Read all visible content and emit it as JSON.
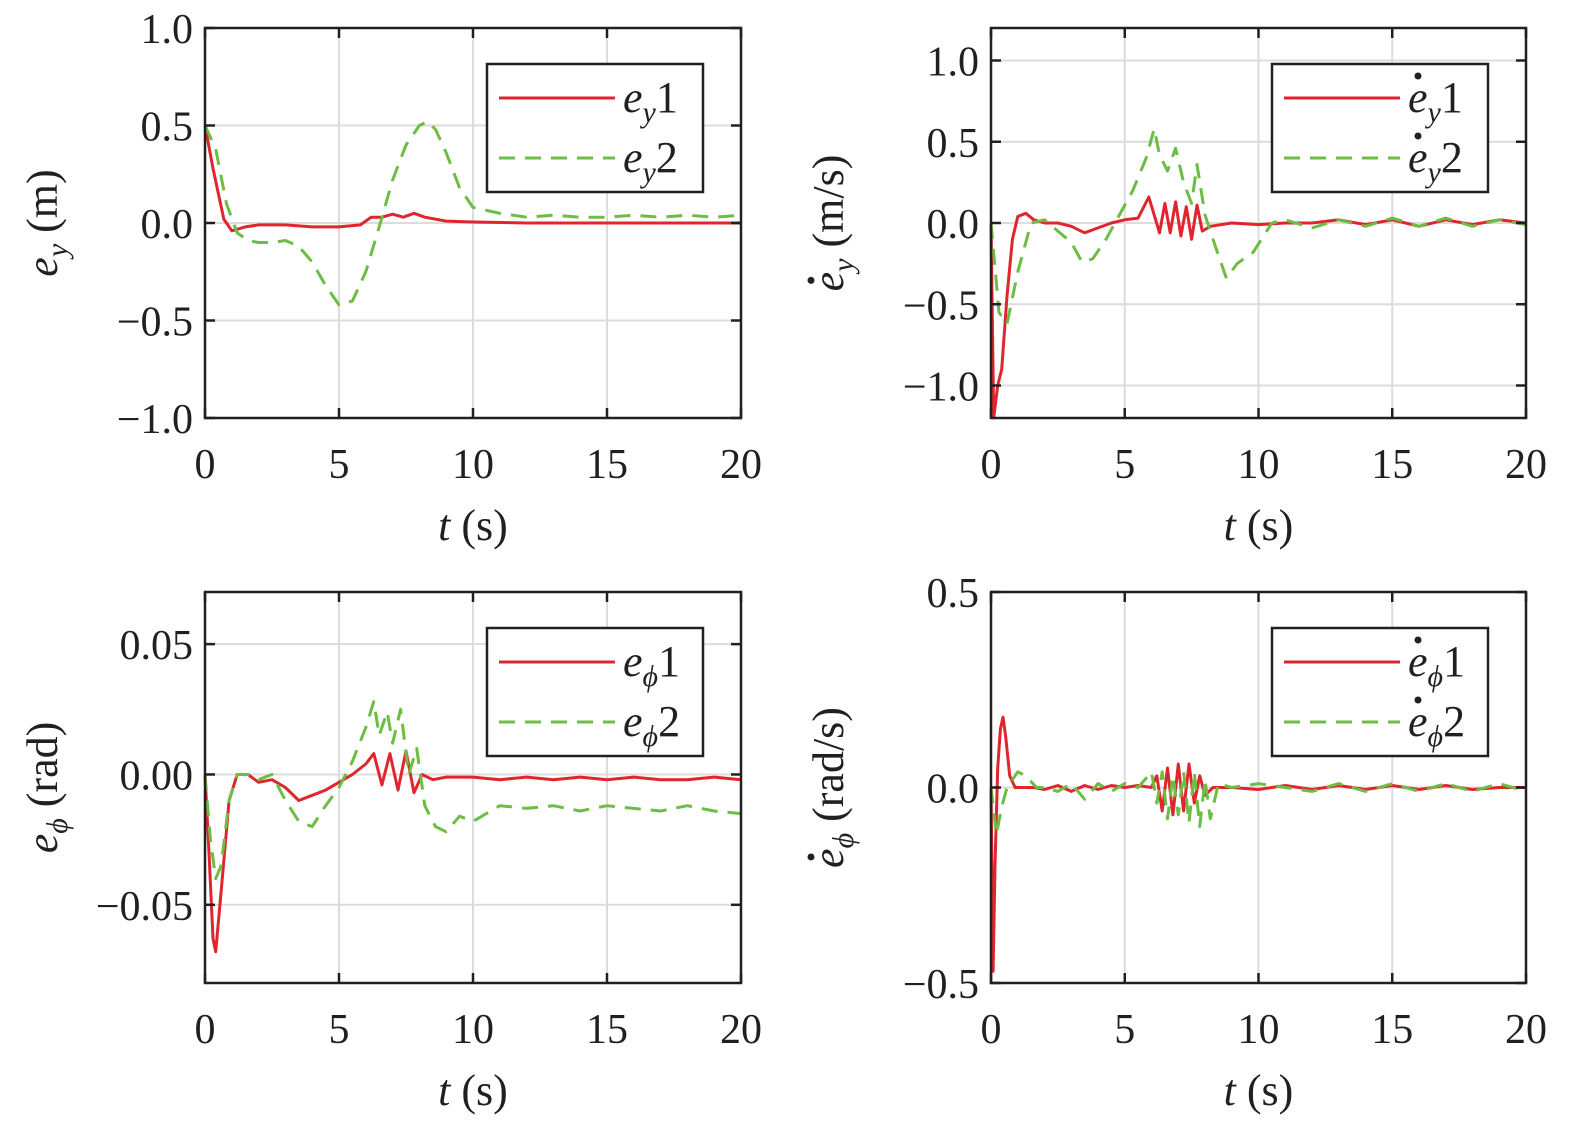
{
  "colors": {
    "series1": "#e0252f",
    "series2": "#6dbd45",
    "grid": "#dcdcdc",
    "axis": "#231f20"
  },
  "chart_data": [
    {
      "type": "line",
      "x_label": {
        "italic": "t",
        "rest": " (s)"
      },
      "y_label": {
        "base": "e",
        "sub": "y",
        "dot": false,
        "unit": " (m)"
      },
      "xlim": [
        0,
        20
      ],
      "ylim": [
        -1.0,
        1.0
      ],
      "x_ticks": [
        "0",
        "5",
        "10",
        "15",
        "20"
      ],
      "y_ticks": [
        "−1.0",
        "−0.5",
        "0.0",
        "0.5",
        "1.0"
      ],
      "y_tick_values": [
        -1.0,
        -0.5,
        0.0,
        0.5,
        1.0
      ],
      "grid": true,
      "legend_position": "top-right",
      "series": [
        {
          "name": "e_y1",
          "legend": {
            "base": "e",
            "sub": "y",
            "idx": "1",
            "dot": false
          },
          "style": "solid",
          "x": [
            0,
            0.3,
            0.7,
            1.0,
            1.5,
            2,
            3,
            4,
            5,
            5.8,
            6.2,
            6.6,
            7.0,
            7.4,
            7.8,
            8.2,
            9,
            10,
            12,
            14,
            16,
            18,
            20
          ],
          "y": [
            0.5,
            0.28,
            0.02,
            -0.04,
            -0.02,
            -0.01,
            -0.01,
            -0.02,
            -0.02,
            -0.01,
            0.03,
            0.03,
            0.045,
            0.03,
            0.05,
            0.03,
            0.01,
            0.005,
            0.0,
            0.0,
            0.0,
            0.0,
            0.0
          ]
        },
        {
          "name": "e_y2",
          "legend": {
            "base": "e",
            "sub": "y",
            "idx": "2",
            "dot": false
          },
          "style": "dashed",
          "x": [
            0,
            0.4,
            0.8,
            1.2,
            1.6,
            2,
            2.5,
            3,
            3.5,
            4,
            4.5,
            5,
            5.5,
            6,
            6.5,
            7,
            7.5,
            8,
            8.3,
            8.6,
            9,
            9.5,
            10,
            11,
            12,
            13,
            14,
            15,
            16,
            17,
            18,
            19,
            20
          ],
          "y": [
            0.5,
            0.38,
            0.1,
            -0.05,
            -0.09,
            -0.1,
            -0.1,
            -0.09,
            -0.12,
            -0.2,
            -0.32,
            -0.42,
            -0.4,
            -0.25,
            -0.02,
            0.22,
            0.4,
            0.5,
            0.52,
            0.48,
            0.36,
            0.18,
            0.08,
            0.05,
            0.03,
            0.04,
            0.03,
            0.03,
            0.04,
            0.03,
            0.04,
            0.03,
            0.04
          ]
        }
      ]
    },
    {
      "type": "line",
      "x_label": {
        "italic": "t",
        "rest": " (s)"
      },
      "y_label": {
        "base": "e",
        "sub": "y",
        "dot": true,
        "unit": " (m/s)"
      },
      "xlim": [
        0,
        20
      ],
      "ylim": [
        -1.2,
        1.2
      ],
      "x_ticks": [
        "0",
        "5",
        "10",
        "15",
        "20"
      ],
      "y_ticks": [
        "−1.0",
        "−0.5",
        "0.0",
        "0.5",
        "1.0"
      ],
      "y_tick_values": [
        -1.0,
        -0.5,
        0.0,
        0.5,
        1.0
      ],
      "grid": true,
      "legend_position": "top-right",
      "series": [
        {
          "name": "ė_y1",
          "legend": {
            "base": "e",
            "sub": "y",
            "idx": "1",
            "dot": true
          },
          "style": "solid",
          "x": [
            0,
            0.1,
            0.25,
            0.4,
            0.6,
            0.8,
            1.0,
            1.3,
            1.6,
            2,
            2.5,
            3,
            3.5,
            4,
            4.5,
            5,
            5.5,
            5.9,
            6.1,
            6.3,
            6.5,
            6.7,
            6.9,
            7.1,
            7.3,
            7.5,
            7.7,
            7.9,
            8.2,
            9,
            10,
            11,
            12,
            13,
            14,
            15,
            16,
            17,
            18,
            19,
            20
          ],
          "y": [
            0,
            -1.2,
            -1.0,
            -0.9,
            -0.45,
            -0.1,
            0.04,
            0.06,
            0.02,
            0.0,
            0.0,
            -0.02,
            -0.06,
            -0.03,
            0.0,
            0.02,
            0.03,
            0.16,
            0.05,
            -0.06,
            0.12,
            -0.06,
            0.13,
            -0.08,
            0.1,
            -0.1,
            0.11,
            -0.05,
            -0.02,
            0.0,
            -0.01,
            0.0,
            0.0,
            0.02,
            -0.01,
            0.02,
            -0.02,
            0.02,
            -0.01,
            0.02,
            0.0
          ]
        },
        {
          "name": "ė_y2",
          "legend": {
            "base": "e",
            "sub": "y",
            "idx": "2",
            "dot": true
          },
          "style": "dashed",
          "x": [
            0,
            0.3,
            0.6,
            1.0,
            1.5,
            2,
            2.5,
            3,
            3.4,
            3.8,
            4.3,
            4.8,
            5.3,
            5.8,
            6.1,
            6.3,
            6.6,
            6.9,
            7.2,
            7.5,
            7.7,
            8.0,
            8.4,
            8.8,
            9.2,
            9.8,
            10.5,
            11,
            12,
            13,
            14,
            15,
            16,
            17,
            18,
            19,
            20
          ],
          "y": [
            0,
            -0.55,
            -0.62,
            -0.3,
            0.0,
            0.02,
            -0.05,
            -0.12,
            -0.24,
            -0.22,
            -0.1,
            0.05,
            0.2,
            0.4,
            0.58,
            0.42,
            0.32,
            0.46,
            0.25,
            0.12,
            0.36,
            0.05,
            -0.15,
            -0.34,
            -0.25,
            -0.18,
            0.0,
            0.02,
            -0.03,
            0.02,
            -0.02,
            0.03,
            -0.02,
            0.03,
            -0.02,
            0.02,
            -0.01
          ]
        }
      ]
    },
    {
      "type": "line",
      "x_label": {
        "italic": "t",
        "rest": " (s)"
      },
      "y_label": {
        "base": "e",
        "sub": "ϕ",
        "dot": false,
        "unit": " (rad)"
      },
      "xlim": [
        0,
        20
      ],
      "ylim": [
        -0.08,
        0.07
      ],
      "x_ticks": [
        "0",
        "5",
        "10",
        "15",
        "20"
      ],
      "y_ticks": [
        "−0.05",
        "0.00",
        "0.05"
      ],
      "y_tick_values": [
        -0.05,
        0.0,
        0.05
      ],
      "grid": true,
      "legend_position": "top-right",
      "series": [
        {
          "name": "e_ϕ1",
          "legend": {
            "base": "e",
            "sub": "ϕ",
            "idx": "1",
            "dot": false
          },
          "style": "solid",
          "x": [
            0,
            0.15,
            0.3,
            0.4,
            0.6,
            0.9,
            1.2,
            1.6,
            2,
            2.5,
            3,
            3.5,
            4,
            4.5,
            5,
            5.5,
            6.0,
            6.3,
            6.6,
            6.9,
            7.2,
            7.5,
            7.8,
            8.1,
            8.5,
            9,
            10,
            11,
            12,
            13,
            14,
            15,
            16,
            17,
            18,
            19,
            20
          ],
          "y": [
            0,
            -0.03,
            -0.063,
            -0.068,
            -0.045,
            -0.01,
            0.0,
            0.0,
            -0.003,
            -0.002,
            -0.005,
            -0.01,
            -0.008,
            -0.006,
            -0.003,
            0.0,
            0.004,
            0.008,
            -0.004,
            0.008,
            -0.006,
            0.009,
            -0.007,
            0.0,
            -0.002,
            -0.001,
            -0.001,
            -0.002,
            -0.001,
            -0.002,
            -0.001,
            -0.002,
            -0.001,
            -0.002,
            -0.002,
            -0.001,
            -0.002
          ]
        },
        {
          "name": "e_ϕ2",
          "legend": {
            "base": "e",
            "sub": "ϕ",
            "idx": "2",
            "dot": false
          },
          "style": "dashed",
          "x": [
            0,
            0.2,
            0.4,
            0.6,
            0.9,
            1.2,
            1.6,
            2,
            2.5,
            3,
            3.5,
            4,
            4.5,
            5,
            5.5,
            6.0,
            6.3,
            6.5,
            6.8,
            7.0,
            7.3,
            7.6,
            7.9,
            8.2,
            8.6,
            9.0,
            9.5,
            10,
            11,
            12,
            13,
            14,
            15,
            16,
            17,
            18,
            19,
            20
          ],
          "y": [
            0,
            -0.025,
            -0.04,
            -0.035,
            -0.01,
            0.0,
            0.0,
            -0.002,
            0.0,
            -0.01,
            -0.018,
            -0.02,
            -0.012,
            -0.005,
            0.005,
            0.018,
            0.028,
            0.015,
            0.024,
            0.012,
            0.025,
            0.0,
            0.01,
            -0.012,
            -0.02,
            -0.022,
            -0.016,
            -0.018,
            -0.012,
            -0.013,
            -0.012,
            -0.014,
            -0.012,
            -0.013,
            -0.014,
            -0.012,
            -0.014,
            -0.015
          ]
        }
      ]
    },
    {
      "type": "line",
      "x_label": {
        "italic": "t",
        "rest": " (s)"
      },
      "y_label": {
        "base": "e",
        "sub": "ϕ",
        "dot": true,
        "unit": " (rad/s)"
      },
      "xlim": [
        0,
        20
      ],
      "ylim": [
        -0.5,
        0.5
      ],
      "x_ticks": [
        "0",
        "5",
        "10",
        "15",
        "20"
      ],
      "y_ticks": [
        "−0.5",
        "0.0",
        "0.5"
      ],
      "y_tick_values": [
        -0.5,
        0.0,
        0.5
      ],
      "grid": true,
      "legend_position": "top-right",
      "series": [
        {
          "name": "ė_ϕ1",
          "legend": {
            "base": "e",
            "sub": "ϕ",
            "idx": "1",
            "dot": true
          },
          "style": "solid",
          "x": [
            0,
            0.08,
            0.15,
            0.25,
            0.35,
            0.45,
            0.55,
            0.7,
            0.9,
            1.2,
            1.6,
            2,
            2.5,
            3,
            3.5,
            4,
            4.5,
            5,
            5.5,
            6.0,
            6.2,
            6.4,
            6.6,
            6.8,
            7.0,
            7.2,
            7.4,
            7.6,
            7.8,
            8.0,
            8.3,
            9,
            10,
            11,
            12,
            13,
            14,
            15,
            16,
            17,
            18,
            19,
            20
          ],
          "y": [
            0,
            -0.47,
            -0.2,
            0.05,
            0.15,
            0.18,
            0.13,
            0.03,
            0.0,
            0.0,
            0.0,
            -0.005,
            0.005,
            -0.01,
            0.005,
            -0.005,
            0.005,
            0.0,
            0.005,
            0.0,
            0.03,
            -0.06,
            0.05,
            -0.07,
            0.06,
            -0.06,
            0.06,
            -0.04,
            0.03,
            -0.02,
            0.0,
            0.0,
            -0.005,
            0.005,
            -0.005,
            0.005,
            -0.005,
            0.005,
            -0.005,
            0.005,
            -0.005,
            0.0,
            0.0
          ]
        },
        {
          "name": "ė_ϕ2",
          "legend": {
            "base": "e",
            "sub": "ϕ",
            "idx": "2",
            "dot": true
          },
          "style": "dashed",
          "x": [
            0,
            0.2,
            0.4,
            0.6,
            0.8,
            1.0,
            1.3,
            1.7,
            2,
            2.5,
            3,
            3.5,
            4,
            4.5,
            5,
            5.5,
            6.0,
            6.2,
            6.4,
            6.6,
            6.8,
            7.0,
            7.2,
            7.4,
            7.6,
            7.8,
            8.0,
            8.2,
            8.5,
            9,
            10,
            11,
            12,
            13,
            14,
            15,
            16,
            17,
            18,
            19,
            20
          ],
          "y": [
            0,
            -0.12,
            -0.05,
            0.0,
            0.02,
            0.04,
            0.03,
            0.0,
            0.0,
            -0.01,
            0.01,
            -0.03,
            0.01,
            -0.01,
            0.01,
            0.0,
            0.04,
            -0.04,
            0.04,
            -0.08,
            0.03,
            -0.07,
            0.04,
            -0.09,
            0.04,
            -0.1,
            0.02,
            -0.08,
            0.01,
            0.0,
            0.01,
            0.0,
            -0.01,
            0.01,
            -0.01,
            0.01,
            -0.01,
            0.01,
            -0.01,
            0.01,
            -0.01
          ]
        }
      ]
    }
  ]
}
